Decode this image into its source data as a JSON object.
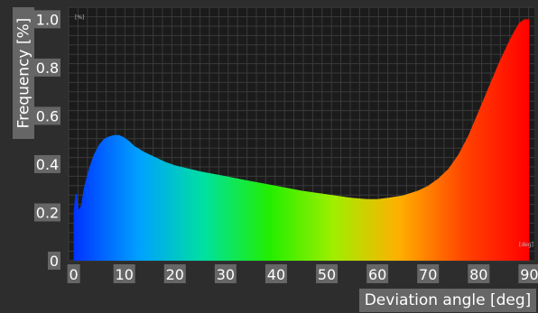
{
  "chart_data": {
    "type": "area",
    "title": "",
    "xlabel": "Deviation angle [deg]",
    "ylabel": "Frequency [%]",
    "x_unit_tag": "[deg]",
    "y_unit_tag": "[%]",
    "xlim": [
      -1,
      91
    ],
    "ylim": [
      0,
      1.05
    ],
    "x_ticks": [
      0,
      10,
      20,
      30,
      40,
      50,
      60,
      70,
      80,
      90
    ],
    "y_ticks": [
      0,
      0.2,
      0.4,
      0.6,
      0.8,
      1.0
    ],
    "y_tick_labels": [
      "0",
      "0.2",
      "0.4",
      "0.6",
      "0.8",
      "1.0"
    ],
    "grid": true,
    "fill": "gradient blue (0 deg) -> cyan -> green -> yellow -> red (90 deg)",
    "series": [
      {
        "x": [
          0,
          0.3,
          0.6,
          1,
          1.5,
          2,
          3,
          4,
          5,
          6,
          7,
          8,
          9,
          10,
          11,
          12,
          14,
          16,
          18,
          20,
          25,
          30,
          35,
          40,
          45,
          50,
          55,
          58,
          60,
          62,
          65,
          68,
          70,
          72,
          74,
          76,
          78,
          80,
          82,
          84,
          86,
          87,
          88,
          89,
          90
        ],
        "y": [
          0.2,
          0.27,
          0.28,
          0.21,
          0.23,
          0.3,
          0.38,
          0.44,
          0.48,
          0.505,
          0.515,
          0.52,
          0.52,
          0.51,
          0.495,
          0.475,
          0.45,
          0.43,
          0.41,
          0.395,
          0.37,
          0.35,
          0.33,
          0.31,
          0.29,
          0.275,
          0.26,
          0.255,
          0.255,
          0.26,
          0.27,
          0.29,
          0.31,
          0.34,
          0.38,
          0.44,
          0.52,
          0.62,
          0.72,
          0.82,
          0.91,
          0.95,
          0.985,
          1.0,
          1.0
        ]
      }
    ]
  },
  "colors": {
    "background": "#2d2d2d",
    "plot_background": "#1b1b1b",
    "grid": "#3a3a3a",
    "label_box": "#666666",
    "gradient": [
      "#0033ff",
      "#00a0ff",
      "#00e0a0",
      "#22ee00",
      "#a0ee00",
      "#ffb000",
      "#ff4400",
      "#ff0000"
    ]
  }
}
